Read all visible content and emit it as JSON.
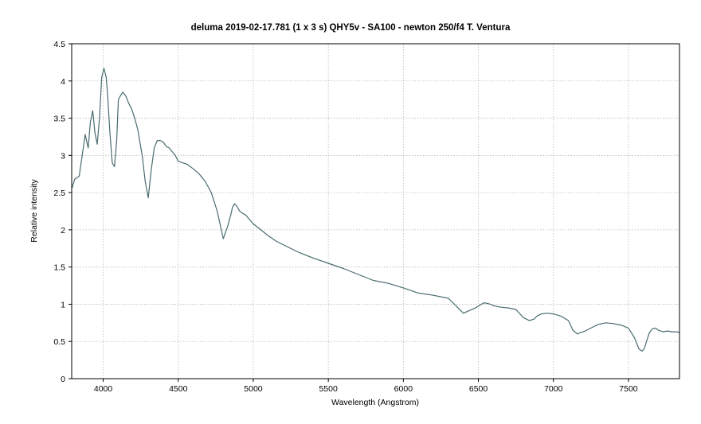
{
  "chart_data": {
    "type": "line",
    "title": "deluma   2019-02-17.781    (1 x 3 s)  QHY5v - SA100 - newton 250/f4 T. Ventura",
    "xlabel": "Wavelength (Angstrom)",
    "ylabel": "Relative intensity",
    "xlim": [
      3790,
      7840
    ],
    "ylim": [
      0,
      4.5
    ],
    "x_ticks": [
      4000,
      4500,
      5000,
      5500,
      6000,
      6500,
      7000,
      7500
    ],
    "y_ticks": [
      0,
      0.5,
      1,
      1.5,
      2,
      2.5,
      3,
      3.5,
      4,
      4.5
    ],
    "x_tick_labels": [
      "4000",
      "4500",
      "5000",
      "5500",
      "6000",
      "6500",
      "7000",
      "7500"
    ],
    "y_tick_labels": [
      "0",
      "0.5",
      "1",
      "1.5",
      "2",
      "2.5",
      "3",
      "3.5",
      "4",
      "4.5"
    ],
    "grid": true,
    "line_color": "#4a6b70",
    "series": [
      {
        "x": [
          3790,
          3810,
          3840,
          3860,
          3880,
          3900,
          3915,
          3930,
          3945,
          3960,
          3975,
          3990,
          4005,
          4020,
          4030,
          4045,
          4060,
          4075,
          4090,
          4101,
          4115,
          4130,
          4150,
          4170,
          4190,
          4210,
          4230,
          4260,
          4280,
          4300,
          4320,
          4340,
          4360,
          4380,
          4400,
          4420,
          4440,
          4460,
          4480,
          4500,
          4530,
          4560,
          4600,
          4640,
          4680,
          4720,
          4760,
          4800,
          4830,
          4850,
          4861,
          4875,
          4890,
          4910,
          4930,
          4950,
          4970,
          5000,
          5050,
          5100,
          5150,
          5200,
          5300,
          5400,
          5500,
          5600,
          5700,
          5800,
          5900,
          6000,
          6100,
          6200,
          6300,
          6400,
          6480,
          6520,
          6540,
          6560,
          6580,
          6600,
          6650,
          6700,
          6750,
          6800,
          6840,
          6870,
          6890,
          6920,
          6960,
          7000,
          7050,
          7100,
          7130,
          7160,
          7180,
          7200,
          7250,
          7300,
          7350,
          7400,
          7450,
          7500,
          7540,
          7570,
          7590,
          7605,
          7620,
          7640,
          7660,
          7680,
          7700,
          7730,
          7760,
          7790,
          7820,
          7840
        ],
        "y": [
          2.55,
          2.68,
          2.72,
          3.0,
          3.28,
          3.1,
          3.45,
          3.6,
          3.3,
          3.15,
          3.5,
          4.05,
          4.17,
          4.05,
          3.8,
          3.3,
          2.9,
          2.85,
          3.2,
          3.75,
          3.8,
          3.85,
          3.8,
          3.7,
          3.62,
          3.5,
          3.35,
          3.0,
          2.65,
          2.43,
          2.8,
          3.1,
          3.2,
          3.2,
          3.18,
          3.12,
          3.1,
          3.05,
          3.0,
          2.92,
          2.9,
          2.88,
          2.82,
          2.75,
          2.65,
          2.5,
          2.25,
          1.88,
          2.05,
          2.2,
          2.3,
          2.35,
          2.32,
          2.25,
          2.22,
          2.2,
          2.15,
          2.08,
          2.0,
          1.92,
          1.85,
          1.8,
          1.7,
          1.62,
          1.55,
          1.48,
          1.4,
          1.32,
          1.28,
          1.22,
          1.15,
          1.12,
          1.08,
          0.88,
          0.95,
          1.0,
          1.02,
          1.01,
          1.0,
          0.98,
          0.96,
          0.95,
          0.93,
          0.82,
          0.78,
          0.8,
          0.84,
          0.87,
          0.88,
          0.87,
          0.84,
          0.78,
          0.65,
          0.6,
          0.62,
          0.63,
          0.68,
          0.73,
          0.75,
          0.74,
          0.72,
          0.68,
          0.55,
          0.4,
          0.37,
          0.4,
          0.5,
          0.62,
          0.67,
          0.68,
          0.65,
          0.63,
          0.64,
          0.63,
          0.63,
          0.62
        ]
      }
    ]
  }
}
